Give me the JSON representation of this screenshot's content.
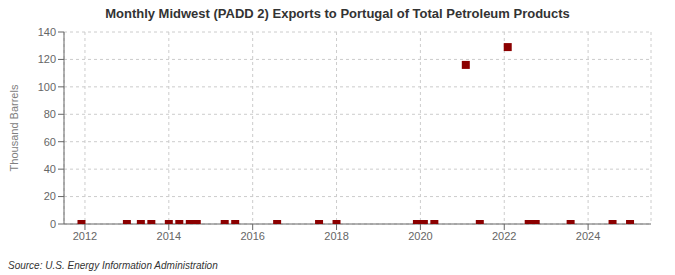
{
  "chart_data": {
    "type": "scatter",
    "title": "Monthly Midwest (PADD 2) Exports to Portugal of Total Petroleum Products",
    "y_label": "Thousand Barrels",
    "annotations": [
      "Source: U.S. Energy Information Administration"
    ],
    "x": [
      2011.917,
      2013.0,
      2013.333,
      2013.583,
      2014.0,
      2014.25,
      2014.5,
      2014.667,
      2015.333,
      2015.583,
      2016.583,
      2017.583,
      2018.0,
      2019.917,
      2020.083,
      2020.333,
      2021.083,
      2021.417,
      2022.083,
      2022.583,
      2022.75,
      2023.583,
      2024.583,
      2025.0
    ],
    "values": [
      0,
      0,
      0,
      0,
      0,
      0,
      0,
      0,
      0,
      0,
      0,
      0,
      0,
      0,
      0,
      0,
      116,
      0,
      129,
      0,
      0,
      0,
      0,
      0
    ],
    "color": "#8b0000",
    "marker": "square",
    "xlim": [
      2011.5,
      2025.5
    ],
    "xticks": [
      2012,
      2014,
      2016,
      2018,
      2020,
      2022,
      2024
    ],
    "ylim": [
      0,
      140
    ],
    "yticks": [
      0,
      20,
      40,
      60,
      80,
      100,
      120,
      140
    ],
    "grid": true
  }
}
